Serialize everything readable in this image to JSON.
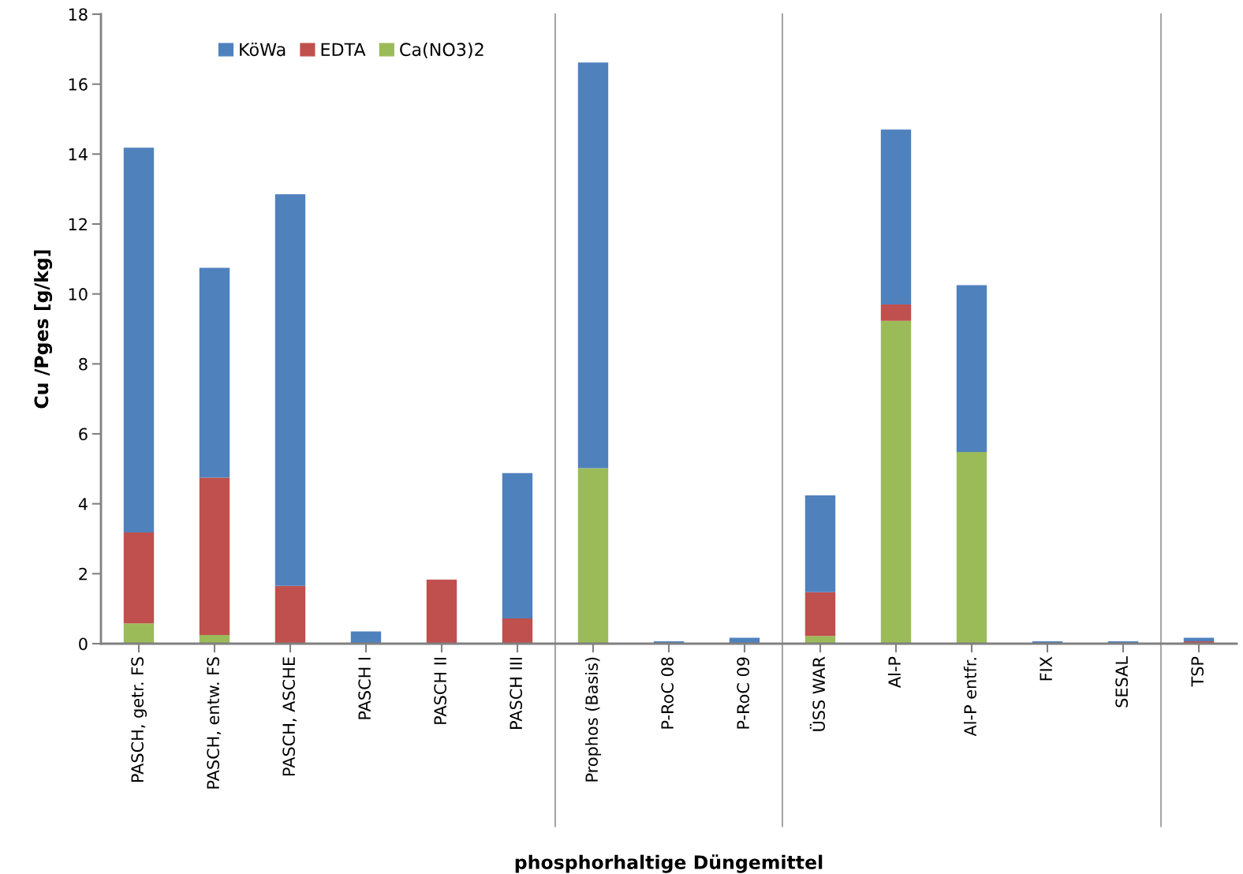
{
  "chart_data": {
    "type": "bar",
    "stacked": true,
    "xlabel": "phosphorhaltige Düngemittel",
    "ylabel": "Cu /Pges [g/kg]",
    "categories": [
      "PASCH, getr. FS",
      "PASCH, entw. FS",
      "PASCH, ASCHE",
      "PASCH I",
      "PASCH II",
      "PASCH III",
      "Prophos (Basis)",
      "P-RoC 08",
      "P-RoC 09",
      "ÜSS WAR",
      "Al-P",
      "Al-P entfr.",
      "FIX",
      "SESAL",
      "TSP"
    ],
    "series": [
      {
        "name": "Ca(NO3)2",
        "color": "#9bbb59",
        "values": [
          0.58,
          0.25,
          0,
          0,
          0,
          0,
          5.02,
          0,
          0,
          0.22,
          9.23,
          5.48,
          0,
          0,
          0
        ]
      },
      {
        "name": "EDTA",
        "color": "#c0504d",
        "values": [
          2.6,
          4.5,
          1.65,
          0,
          1.83,
          0.72,
          0,
          0.02,
          0,
          1.25,
          0.47,
          0,
          0,
          0,
          0.07
        ]
      },
      {
        "name": "KöWa",
        "color": "#4f81bd",
        "values": [
          11.0,
          6.0,
          11.2,
          0.35,
          0,
          4.16,
          11.6,
          0.05,
          0.17,
          2.77,
          5.0,
          4.77,
          0.07,
          0.07,
          0.1
        ]
      }
    ],
    "ylim": [
      0,
      18
    ],
    "yticks": [
      0,
      2,
      4,
      6,
      8,
      10,
      12,
      14,
      16,
      18
    ],
    "grid": false,
    "legend": "top left"
  }
}
